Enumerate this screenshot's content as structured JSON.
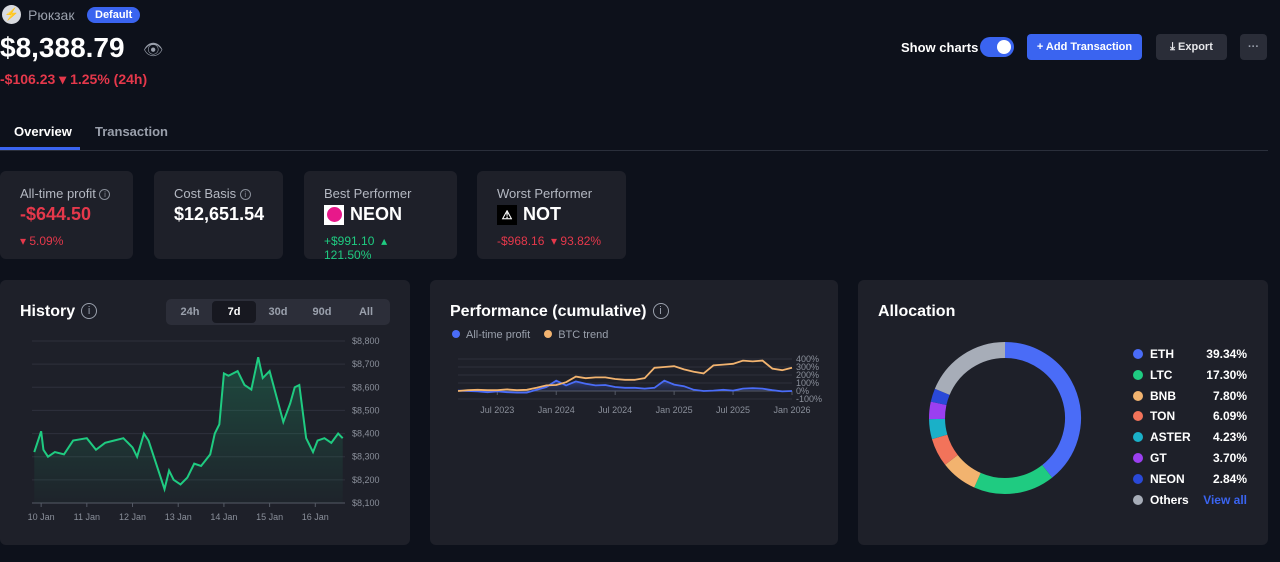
{
  "portfolio": {
    "name": "Рюкзак",
    "badge": "Default",
    "total": "$8,388.79",
    "change": "-$106.23",
    "change_pct": "▾ 1.25% (24h)"
  },
  "tabs": [
    "Overview",
    "Transaction"
  ],
  "toolbar": {
    "show_charts": "Show charts",
    "show_charts_on": true,
    "add": "+ Add Transaction",
    "export": "Export",
    "more": "···"
  },
  "stats": [
    {
      "label": "All-time profit",
      "value": "-$644.50",
      "sub": "▾ 5.09%"
    },
    {
      "label": "Cost Basis",
      "value": "$12,651.54"
    },
    {
      "label": "Best Performer",
      "value": "NEON",
      "sub1": "+$991.10",
      "sub2": "▴ 121.50%"
    },
    {
      "label": "Worst Performer",
      "value": "NOT",
      "sub1": "-$968.16",
      "sub2": "▾ 93.82%"
    }
  ],
  "colors": {
    "accent": "#3a64f0",
    "negative": "#e5384b",
    "positive": "#1fcb81"
  },
  "chart_data": [
    {
      "type": "area",
      "title": "History",
      "ranges": [
        "24h",
        "7d",
        "30d",
        "90d",
        "All"
      ],
      "selected_range": "7d",
      "x_ticks": [
        "10 Jan",
        "11 Jan",
        "12 Jan",
        "13 Jan",
        "14 Jan",
        "15 Jan",
        "16 Jan"
      ],
      "y_ticks": [
        "$8,800",
        "$8,700",
        "$8,600",
        "$8,500",
        "$8,400",
        "$8,300",
        "$8,200",
        "$8,100"
      ],
      "ylim": [
        8100,
        8800
      ],
      "grid": true,
      "x_days": [
        9.85,
        10.0,
        10.05,
        10.15,
        10.3,
        10.5,
        10.7,
        11.0,
        11.2,
        11.4,
        11.6,
        11.8,
        12.0,
        12.1,
        12.25,
        12.35,
        12.5,
        12.7,
        12.8,
        12.9,
        13.05,
        13.2,
        13.35,
        13.5,
        13.7,
        13.8,
        13.9,
        14.0,
        14.1,
        14.3,
        14.45,
        14.6,
        14.75,
        14.85,
        15.0,
        15.15,
        15.3,
        15.45,
        15.55,
        15.65,
        15.8,
        15.95,
        16.05,
        16.2,
        16.35,
        16.5,
        16.6
      ],
      "values": [
        8320,
        8410,
        8330,
        8300,
        8320,
        8310,
        8370,
        8380,
        8330,
        8360,
        8370,
        8380,
        8340,
        8300,
        8400,
        8370,
        8280,
        8160,
        8240,
        8200,
        8180,
        8210,
        8270,
        8260,
        8310,
        8400,
        8440,
        8660,
        8650,
        8670,
        8610,
        8590,
        8730,
        8640,
        8670,
        8560,
        8450,
        8530,
        8600,
        8610,
        8380,
        8320,
        8370,
        8380,
        8360,
        8400,
        8380
      ]
    },
    {
      "type": "line",
      "title": "Performance (cumulative)",
      "x_ticks": [
        "Jul 2023",
        "Jan 2024",
        "Jul 2024",
        "Jan 2025",
        "Jul 2025",
        "Jan 2026"
      ],
      "y_ticks": [
        "400%",
        "300%",
        "200%",
        "100%",
        "0%",
        "-100%"
      ],
      "ylim": [
        -100,
        400
      ],
      "grid": true,
      "legend": "top-left",
      "x": [
        "2023-03",
        "2023-04",
        "2023-05",
        "2023-06",
        "2023-07",
        "2023-08",
        "2023-09",
        "2023-10",
        "2023-11",
        "2023-12",
        "2024-01",
        "2024-02",
        "2024-03",
        "2024-04",
        "2024-05",
        "2024-06",
        "2024-07",
        "2024-08",
        "2024-09",
        "2024-10",
        "2024-11",
        "2024-12",
        "2025-01",
        "2025-02",
        "2025-03",
        "2025-04",
        "2025-05",
        "2025-06",
        "2025-07",
        "2025-08",
        "2025-09",
        "2025-10",
        "2025-11",
        "2025-12",
        "2026-01"
      ],
      "series": [
        {
          "name": "All-time profit",
          "color": "#4a6cf7",
          "values": [
            5,
            0,
            -5,
            -15,
            -5,
            -15,
            -20,
            -20,
            15,
            50,
            130,
            70,
            120,
            90,
            70,
            75,
            50,
            40,
            40,
            30,
            40,
            130,
            80,
            60,
            15,
            0,
            5,
            15,
            5,
            30,
            35,
            30,
            10,
            -5,
            0
          ]
        },
        {
          "name": "BTC trend",
          "color": "#f2b36f",
          "values": [
            0,
            10,
            15,
            10,
            10,
            20,
            10,
            15,
            40,
            70,
            75,
            110,
            180,
            160,
            170,
            170,
            150,
            140,
            140,
            160,
            290,
            300,
            310,
            270,
            240,
            220,
            320,
            330,
            340,
            380,
            370,
            380,
            280,
            260,
            290
          ]
        }
      ]
    },
    {
      "type": "pie",
      "title": "Allocation",
      "view_all": "View all",
      "slices": [
        {
          "name": "ETH",
          "pct": "39.34%",
          "value": 39.34,
          "color": "#4a6cf7"
        },
        {
          "name": "LTC",
          "pct": "17.30%",
          "value": 17.3,
          "color": "#1fcb81"
        },
        {
          "name": "BNB",
          "pct": "7.80%",
          "value": 7.8,
          "color": "#f2b36f"
        },
        {
          "name": "TON",
          "pct": "6.09%",
          "value": 6.09,
          "color": "#f2735a"
        },
        {
          "name": "ASTER",
          "pct": "4.23%",
          "value": 4.23,
          "color": "#1ab0c8"
        },
        {
          "name": "GT",
          "pct": "3.70%",
          "value": 3.7,
          "color": "#9b3ff0"
        },
        {
          "name": "NEON",
          "pct": "2.84%",
          "value": 2.84,
          "color": "#2a49d8"
        },
        {
          "name": "Others",
          "color": "#a7adb8"
        }
      ]
    }
  ]
}
